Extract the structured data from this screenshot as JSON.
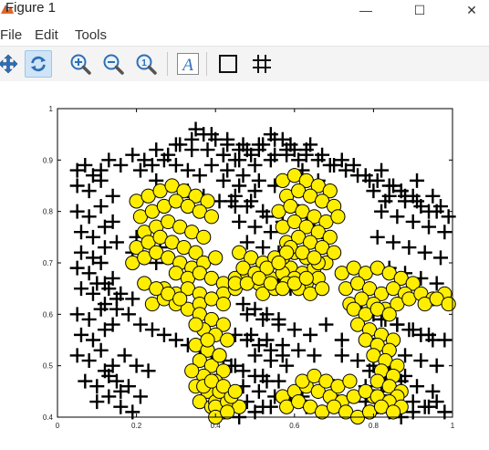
{
  "window": {
    "title": "Figure 1",
    "minimize_glyph": "—",
    "maximize_glyph": "☐",
    "close_glyph": "✕"
  },
  "menu": {
    "items": [
      {
        "label": "File"
      },
      {
        "label": "Edit"
      },
      {
        "label": "Tools"
      }
    ]
  },
  "toolbar": {
    "buttons": [
      {
        "icon": "pan-icon"
      },
      {
        "icon": "rotate-icon",
        "active": true
      },
      {
        "icon": "zoom-in-icon"
      },
      {
        "icon": "zoom-out-icon"
      },
      {
        "icon": "zoom-reset-icon"
      },
      {
        "icon": "insert-text-icon",
        "label": "A"
      },
      {
        "icon": "toggle-axes-box-icon"
      },
      {
        "icon": "toggle-grid-icon"
      }
    ],
    "colors": {
      "active_bg": "#cfe4f7",
      "icon_blue": "#2f6fb5"
    }
  },
  "chart_data": {
    "type": "scatter",
    "title": "",
    "xlabel": "",
    "ylabel": "",
    "xlim": [
      0,
      1
    ],
    "ylim": [
      0.4,
      1
    ],
    "xticks": [
      "0",
      "0.2",
      "0.4",
      "0.6",
      "0.8",
      "1"
    ],
    "yticks": [
      "0.4",
      "0.5",
      "0.6",
      "0.7",
      "0.8",
      "0.9",
      "1"
    ],
    "grid": false,
    "legend": "none",
    "series": [
      {
        "marker": "plus",
        "color": "#000000",
        "x": [
          0.05,
          0.07,
          0.09,
          0.11,
          0.13,
          0.16,
          0.19,
          0.22,
          0.25,
          0.28,
          0.31,
          0.34,
          0.37,
          0.4,
          0.43,
          0.46,
          0.49,
          0.52,
          0.55,
          0.58,
          0.61,
          0.64,
          0.67,
          0.7,
          0.73,
          0.76,
          0.79,
          0.82,
          0.85,
          0.88,
          0.91,
          0.94,
          0.97,
          0.05,
          0.08,
          0.11,
          0.14,
          0.05,
          0.08,
          0.11,
          0.14,
          0.06,
          0.09,
          0.12,
          0.15,
          0.06,
          0.09,
          0.12,
          0.05,
          0.08,
          0.11,
          0.14,
          0.06,
          0.09,
          0.12,
          0.15,
          0.05,
          0.08,
          0.11,
          0.14,
          0.06,
          0.09,
          0.12,
          0.05,
          0.08,
          0.11,
          0.14,
          0.07,
          0.1,
          0.13,
          0.16,
          0.1,
          0.13,
          0.16,
          0.19,
          0.12,
          0.15,
          0.18,
          0.21,
          0.17,
          0.2,
          0.23,
          0.42,
          0.46,
          0.5,
          0.44,
          0.48,
          0.52,
          0.46,
          0.5,
          0.54,
          0.48,
          0.52,
          0.56,
          0.43,
          0.47,
          0.51,
          0.55,
          0.45,
          0.49,
          0.53,
          0.57,
          0.6,
          0.62,
          0.64,
          0.59,
          0.61,
          0.63,
          0.65,
          0.67,
          0.62,
          0.66,
          0.48,
          0.52,
          0.56,
          0.49,
          0.53,
          0.57,
          0.5,
          0.54,
          0.58,
          0.52,
          0.56,
          0.47,
          0.51,
          0.55,
          0.59,
          0.63,
          0.67,
          0.71,
          0.6,
          0.64,
          0.68,
          0.72,
          0.61,
          0.65,
          0.8,
          0.84,
          0.88,
          0.92,
          0.96,
          0.82,
          0.86,
          0.9,
          0.94,
          0.98,
          0.83,
          0.87,
          0.91,
          0.95,
          0.99,
          0.81,
          0.85,
          0.89,
          0.93,
          0.97,
          0.84,
          0.88,
          0.92,
          0.96,
          0.78,
          0.82,
          0.86,
          0.9,
          0.94,
          0.98,
          0.8,
          0.84,
          0.88,
          0.92,
          0.96,
          0.79,
          0.83,
          0.87,
          0.91,
          0.95,
          0.4,
          0.44,
          0.48,
          0.52,
          0.42,
          0.46,
          0.5,
          0.54,
          0.58,
          0.62,
          0.66,
          0.7,
          0.74,
          0.78,
          0.82,
          0.86,
          0.9,
          0.94,
          0.98,
          0.72,
          0.76,
          0.8,
          0.84,
          0.88,
          0.3,
          0.34,
          0.38,
          0.42,
          0.46,
          0.5,
          0.54,
          0.58,
          0.35,
          0.39,
          0.43,
          0.47,
          0.51,
          0.55,
          0.59,
          0.63,
          0.25,
          0.29,
          0.33,
          0.37,
          0.41,
          0.45,
          0.21,
          0.24,
          0.27,
          0.3,
          0.33,
          0.36,
          0.39,
          0.42,
          0.45,
          0.48,
          0.51,
          0.54,
          0.57,
          0.6,
          0.63,
          0.66,
          0.69,
          0.72,
          0.75,
          0.78,
          0.81,
          0.84,
          0.87,
          0.9,
          0.74,
          0.77,
          0.8,
          0.83,
          0.86,
          0.89,
          0.92,
          0.95,
          0.75,
          0.78,
          0.81,
          0.84,
          0.87,
          0.9,
          0.93,
          0.96,
          0.47,
          0.5,
          0.53,
          0.56,
          0.59,
          0.47,
          0.5,
          0.53,
          0.56,
          0.45,
          0.48,
          0.51,
          0.54,
          0.57,
          0.44,
          0.47,
          0.5,
          0.53,
          0.2,
          0.23,
          0.26,
          0.19,
          0.22,
          0.25,
          0.1,
          0.13,
          0.16,
          0.19,
          0.12,
          0.15,
          0.18,
          0.21,
          0.24,
          0.27,
          0.3,
          0.33,
          0.36,
          0.39,
          0.42,
          0.45
        ],
        "y": [
          0.88,
          0.89,
          0.87,
          0.88,
          0.9,
          0.89,
          0.91,
          0.9,
          0.92,
          0.91,
          0.93,
          0.92,
          0.95,
          0.94,
          0.93,
          0.92,
          0.91,
          0.93,
          0.94,
          0.92,
          0.9,
          0.93,
          0.91,
          0.89,
          0.88,
          0.87,
          0.86,
          0.88,
          0.85,
          0.83,
          0.82,
          0.8,
          0.81,
          0.85,
          0.84,
          0.86,
          0.83,
          0.8,
          0.79,
          0.81,
          0.78,
          0.76,
          0.75,
          0.77,
          0.74,
          0.72,
          0.71,
          0.73,
          0.69,
          0.68,
          0.7,
          0.67,
          0.65,
          0.64,
          0.66,
          0.63,
          0.6,
          0.59,
          0.61,
          0.58,
          0.56,
          0.55,
          0.57,
          0.52,
          0.51,
          0.53,
          0.5,
          0.47,
          0.46,
          0.48,
          0.45,
          0.43,
          0.44,
          0.42,
          0.41,
          0.49,
          0.47,
          0.46,
          0.44,
          0.52,
          0.5,
          0.49,
          0.86,
          0.85,
          0.84,
          0.82,
          0.81,
          0.8,
          0.78,
          0.77,
          0.76,
          0.74,
          0.73,
          0.72,
          0.88,
          0.87,
          0.86,
          0.85,
          0.83,
          0.82,
          0.79,
          0.78,
          0.87,
          0.85,
          0.83,
          0.81,
          0.8,
          0.79,
          0.77,
          0.76,
          0.88,
          0.86,
          0.6,
          0.59,
          0.58,
          0.56,
          0.55,
          0.54,
          0.52,
          0.51,
          0.5,
          0.48,
          0.47,
          0.46,
          0.45,
          0.44,
          0.43,
          0.42,
          0.41,
          0.43,
          0.57,
          0.56,
          0.58,
          0.55,
          0.53,
          0.52,
          0.84,
          0.83,
          0.82,
          0.81,
          0.8,
          0.8,
          0.79,
          0.78,
          0.77,
          0.76,
          0.82,
          0.84,
          0.86,
          0.83,
          0.79,
          0.75,
          0.74,
          0.73,
          0.72,
          0.71,
          0.69,
          0.68,
          0.67,
          0.66,
          0.6,
          0.59,
          0.58,
          0.57,
          0.56,
          0.55,
          0.54,
          0.53,
          0.52,
          0.51,
          0.5,
          0.49,
          0.48,
          0.47,
          0.46,
          0.45,
          0.45,
          0.44,
          0.43,
          0.42,
          0.41,
          0.4,
          0.41,
          0.42,
          0.43,
          0.44,
          0.45,
          0.46,
          0.47,
          0.46,
          0.45,
          0.44,
          0.43,
          0.42,
          0.41,
          0.52,
          0.51,
          0.5,
          0.49,
          0.48,
          0.93,
          0.94,
          0.92,
          0.91,
          0.9,
          0.89,
          0.9,
          0.91,
          0.96,
          0.95,
          0.94,
          0.93,
          0.92,
          0.91,
          0.93,
          0.92,
          0.86,
          0.85,
          0.84,
          0.83,
          0.82,
          0.81,
          0.88,
          0.89,
          0.9,
          0.89,
          0.88,
          0.87,
          0.89,
          0.91,
          0.9,
          0.92,
          0.93,
          0.95,
          0.94,
          0.92,
          0.91,
          0.9,
          0.89,
          0.9,
          0.89,
          0.87,
          0.86,
          0.85,
          0.84,
          0.83,
          0.62,
          0.61,
          0.6,
          0.59,
          0.58,
          0.57,
          0.56,
          0.55,
          0.44,
          0.43,
          0.42,
          0.41,
          0.4,
          0.41,
          0.42,
          0.43,
          0.69,
          0.68,
          0.67,
          0.66,
          0.65,
          0.62,
          0.61,
          0.6,
          0.59,
          0.56,
          0.55,
          0.54,
          0.53,
          0.52,
          0.5,
          0.49,
          0.48,
          0.47,
          0.75,
          0.74,
          0.73,
          0.72,
          0.71,
          0.7,
          0.66,
          0.65,
          0.64,
          0.63,
          0.62,
          0.61,
          0.6,
          0.58,
          0.57,
          0.56,
          0.55,
          0.54,
          0.53,
          0.52,
          0.51,
          0.5
        ]
      },
      {
        "marker": "circle",
        "color": "#ffee00",
        "edgecolor": "#000000",
        "x": [
          0.2,
          0.23,
          0.26,
          0.29,
          0.32,
          0.35,
          0.38,
          0.21,
          0.24,
          0.27,
          0.3,
          0.33,
          0.36,
          0.39,
          0.22,
          0.25,
          0.28,
          0.31,
          0.34,
          0.37,
          0.2,
          0.23,
          0.26,
          0.29,
          0.32,
          0.35,
          0.19,
          0.22,
          0.25,
          0.28,
          0.31,
          0.34,
          0.37,
          0.4,
          0.3,
          0.33,
          0.36,
          0.39,
          0.42,
          0.45,
          0.48,
          0.27,
          0.3,
          0.33,
          0.36,
          0.39,
          0.42,
          0.45,
          0.24,
          0.27,
          0.3,
          0.33,
          0.36,
          0.39,
          0.42,
          0.22,
          0.25,
          0.28,
          0.31,
          0.36,
          0.39,
          0.42,
          0.37,
          0.4,
          0.43,
          0.35,
          0.38,
          0.41,
          0.36,
          0.39,
          0.42,
          0.37,
          0.4,
          0.35,
          0.38,
          0.41,
          0.36,
          0.39,
          0.42,
          0.35,
          0.38,
          0.41,
          0.34,
          0.37,
          0.4,
          0.5,
          0.53,
          0.56,
          0.59,
          0.62,
          0.65,
          0.68,
          0.51,
          0.54,
          0.57,
          0.6,
          0.63,
          0.66,
          0.52,
          0.55,
          0.58,
          0.61,
          0.64,
          0.67,
          0.57,
          0.6,
          0.63,
          0.66,
          0.69,
          0.58,
          0.61,
          0.64,
          0.67,
          0.7,
          0.56,
          0.59,
          0.62,
          0.65,
          0.68,
          0.71,
          0.57,
          0.6,
          0.63,
          0.66,
          0.69,
          0.58,
          0.61,
          0.64,
          0.67,
          0.7,
          0.57,
          0.6,
          0.63,
          0.66,
          0.59,
          0.62,
          0.65,
          0.72,
          0.75,
          0.78,
          0.81,
          0.84,
          0.87,
          0.9,
          0.73,
          0.76,
          0.79,
          0.82,
          0.85,
          0.88,
          0.74,
          0.77,
          0.8,
          0.83,
          0.86,
          0.89,
          0.92,
          0.95,
          0.98,
          0.75,
          0.78,
          0.81,
          0.84,
          0.93,
          0.96,
          0.99,
          0.76,
          0.79,
          0.82,
          0.85,
          0.78,
          0.81,
          0.84,
          0.8,
          0.83,
          0.86,
          0.82,
          0.85,
          0.81,
          0.84,
          0.87,
          0.8,
          0.83,
          0.86,
          0.79,
          0.82,
          0.57,
          0.6,
          0.63,
          0.66,
          0.69,
          0.72,
          0.75,
          0.78,
          0.81,
          0.84,
          0.87,
          0.58,
          0.61,
          0.64,
          0.67,
          0.7,
          0.73,
          0.76,
          0.79,
          0.82,
          0.85,
          0.62,
          0.65,
          0.68,
          0.71,
          0.74,
          0.46,
          0.49,
          0.52,
          0.55,
          0.58,
          0.47,
          0.5,
          0.53,
          0.56,
          0.45,
          0.48,
          0.51,
          0.54,
          0.57,
          0.6,
          0.63,
          0.4,
          0.43,
          0.46,
          0.41,
          0.44,
          0.39,
          0.42,
          0.45,
          0.4,
          0.43
        ],
        "y": [
          0.82,
          0.83,
          0.84,
          0.85,
          0.84,
          0.83,
          0.82,
          0.79,
          0.8,
          0.81,
          0.82,
          0.81,
          0.8,
          0.79,
          0.76,
          0.77,
          0.78,
          0.77,
          0.76,
          0.75,
          0.73,
          0.74,
          0.75,
          0.74,
          0.73,
          0.72,
          0.7,
          0.71,
          0.72,
          0.71,
          0.7,
          0.69,
          0.7,
          0.71,
          0.68,
          0.67,
          0.68,
          0.67,
          0.66,
          0.67,
          0.68,
          0.65,
          0.64,
          0.65,
          0.64,
          0.63,
          0.64,
          0.65,
          0.62,
          0.63,
          0.62,
          0.61,
          0.62,
          0.63,
          0.62,
          0.66,
          0.65,
          0.64,
          0.63,
          0.6,
          0.59,
          0.58,
          0.57,
          0.56,
          0.55,
          0.54,
          0.53,
          0.52,
          0.51,
          0.5,
          0.49,
          0.48,
          0.47,
          0.46,
          0.45,
          0.44,
          0.43,
          0.42,
          0.41,
          0.58,
          0.55,
          0.52,
          0.49,
          0.46,
          0.43,
          0.68,
          0.69,
          0.7,
          0.69,
          0.68,
          0.69,
          0.7,
          0.66,
          0.67,
          0.68,
          0.67,
          0.66,
          0.67,
          0.64,
          0.65,
          0.66,
          0.65,
          0.64,
          0.65,
          0.86,
          0.87,
          0.86,
          0.85,
          0.84,
          0.83,
          0.84,
          0.83,
          0.82,
          0.81,
          0.8,
          0.81,
          0.8,
          0.79,
          0.78,
          0.79,
          0.77,
          0.78,
          0.77,
          0.76,
          0.75,
          0.74,
          0.75,
          0.74,
          0.73,
          0.72,
          0.71,
          0.72,
          0.71,
          0.7,
          0.73,
          0.72,
          0.71,
          0.68,
          0.69,
          0.68,
          0.69,
          0.68,
          0.67,
          0.66,
          0.65,
          0.66,
          0.65,
          0.64,
          0.65,
          0.64,
          0.62,
          0.63,
          0.62,
          0.61,
          0.62,
          0.63,
          0.64,
          0.63,
          0.64,
          0.61,
          0.6,
          0.61,
          0.6,
          0.62,
          0.63,
          0.62,
          0.58,
          0.57,
          0.56,
          0.55,
          0.55,
          0.54,
          0.53,
          0.52,
          0.51,
          0.5,
          0.49,
          0.48,
          0.47,
          0.46,
          0.45,
          0.44,
          0.43,
          0.44,
          0.41,
          0.42,
          0.44,
          0.45,
          0.46,
          0.45,
          0.44,
          0.43,
          0.44,
          0.45,
          0.44,
          0.43,
          0.42,
          0.42,
          0.43,
          0.42,
          0.41,
          0.42,
          0.41,
          0.4,
          0.41,
          0.42,
          0.41,
          0.47,
          0.48,
          0.47,
          0.46,
          0.47,
          0.72,
          0.71,
          0.7,
          0.71,
          0.72,
          0.69,
          0.68,
          0.69,
          0.7,
          0.66,
          0.66,
          0.67,
          0.66,
          0.65,
          0.66,
          0.67,
          0.42,
          0.43,
          0.42,
          0.45,
          0.44,
          0.47,
          0.46,
          0.45,
          0.4,
          0.41
        ]
      }
    ]
  }
}
